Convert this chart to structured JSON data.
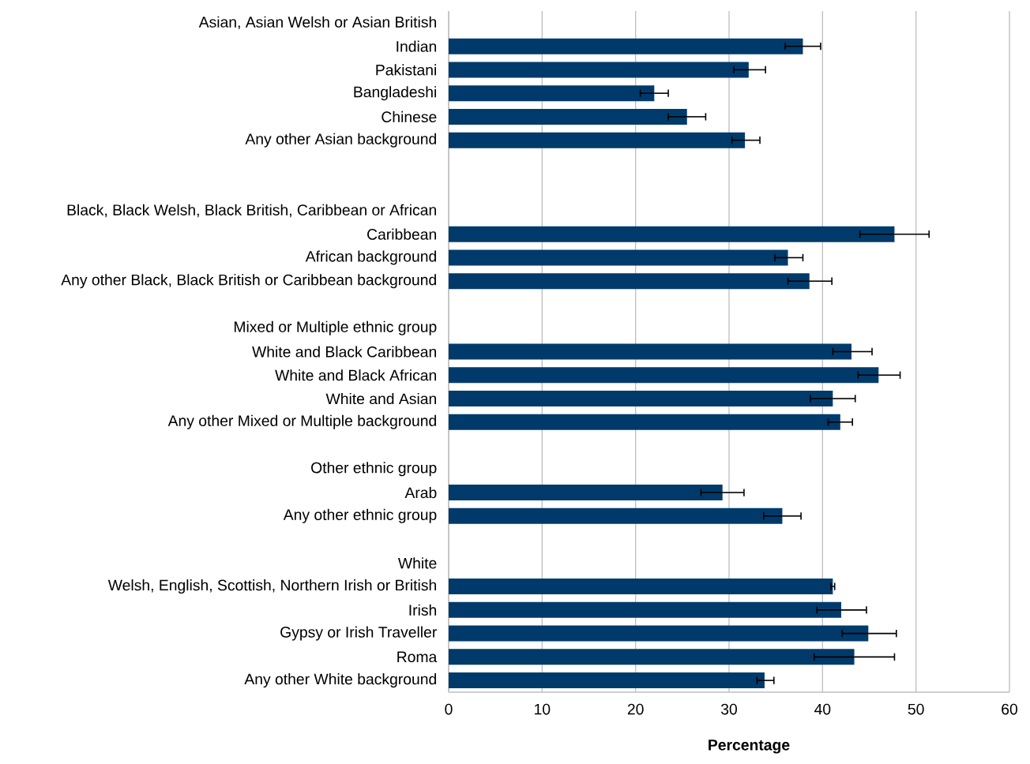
{
  "chart_data": {
    "type": "bar",
    "orientation": "horizontal",
    "xlabel": "**Percentage**",
    "categories": [
      "Asian, Asian Welsh or Asian British",
      "Indian",
      "Pakistani",
      "Bangladeshi",
      "Chinese",
      "Any other Asian background",
      null,
      null,
      "Black, Black Welsh, Black British, Caribbean or African",
      "Caribbean",
      "African background",
      "Any other Black, Black British or Caribbean background",
      null,
      "Mixed or Multiple ethnic group",
      "White and Black Caribbean",
      "White and Black African",
      "White and Asian",
      "Any other Mixed or Multiple background",
      null,
      "Other ethnic group",
      "Arab",
      "Any other ethnic group",
      null,
      "White",
      "Welsh, English, Scottish, Northern Irish or British",
      "Irish",
      "Gypsy or Irish Traveller",
      "Roma",
      "Any other White background"
    ],
    "values": [
      null,
      37.9,
      32.1,
      22.0,
      25.5,
      31.7,
      null,
      null,
      null,
      47.7,
      36.3,
      38.6,
      null,
      null,
      43.1,
      46.0,
      41.1,
      41.9,
      null,
      null,
      29.3,
      35.7,
      null,
      null,
      41.1,
      42.0,
      44.9,
      43.4,
      33.8
    ],
    "errors": [
      null,
      [
        36.0,
        39.8
      ],
      [
        30.5,
        33.9
      ],
      [
        20.5,
        23.5
      ],
      [
        23.5,
        27.5
      ],
      [
        30.3,
        33.3
      ],
      null,
      null,
      null,
      [
        44.0,
        51.4
      ],
      [
        34.9,
        37.9
      ],
      [
        36.3,
        41.0
      ],
      null,
      null,
      [
        41.1,
        45.3
      ],
      [
        43.8,
        48.3
      ],
      [
        38.7,
        43.5
      ],
      [
        40.6,
        43.2
      ],
      null,
      null,
      [
        27.0,
        31.6
      ],
      [
        33.7,
        37.7
      ],
      null,
      null,
      [
        40.9,
        41.3
      ],
      [
        39.4,
        44.7
      ],
      [
        42.1,
        47.9
      ],
      [
        39.1,
        47.7
      ],
      [
        33.0,
        34.8
      ]
    ],
    "color": "#003a6b",
    "xlim": [
      0,
      60
    ],
    "xticks": [
      0,
      10,
      20,
      30,
      40,
      50,
      60
    ],
    "grid": "x"
  }
}
